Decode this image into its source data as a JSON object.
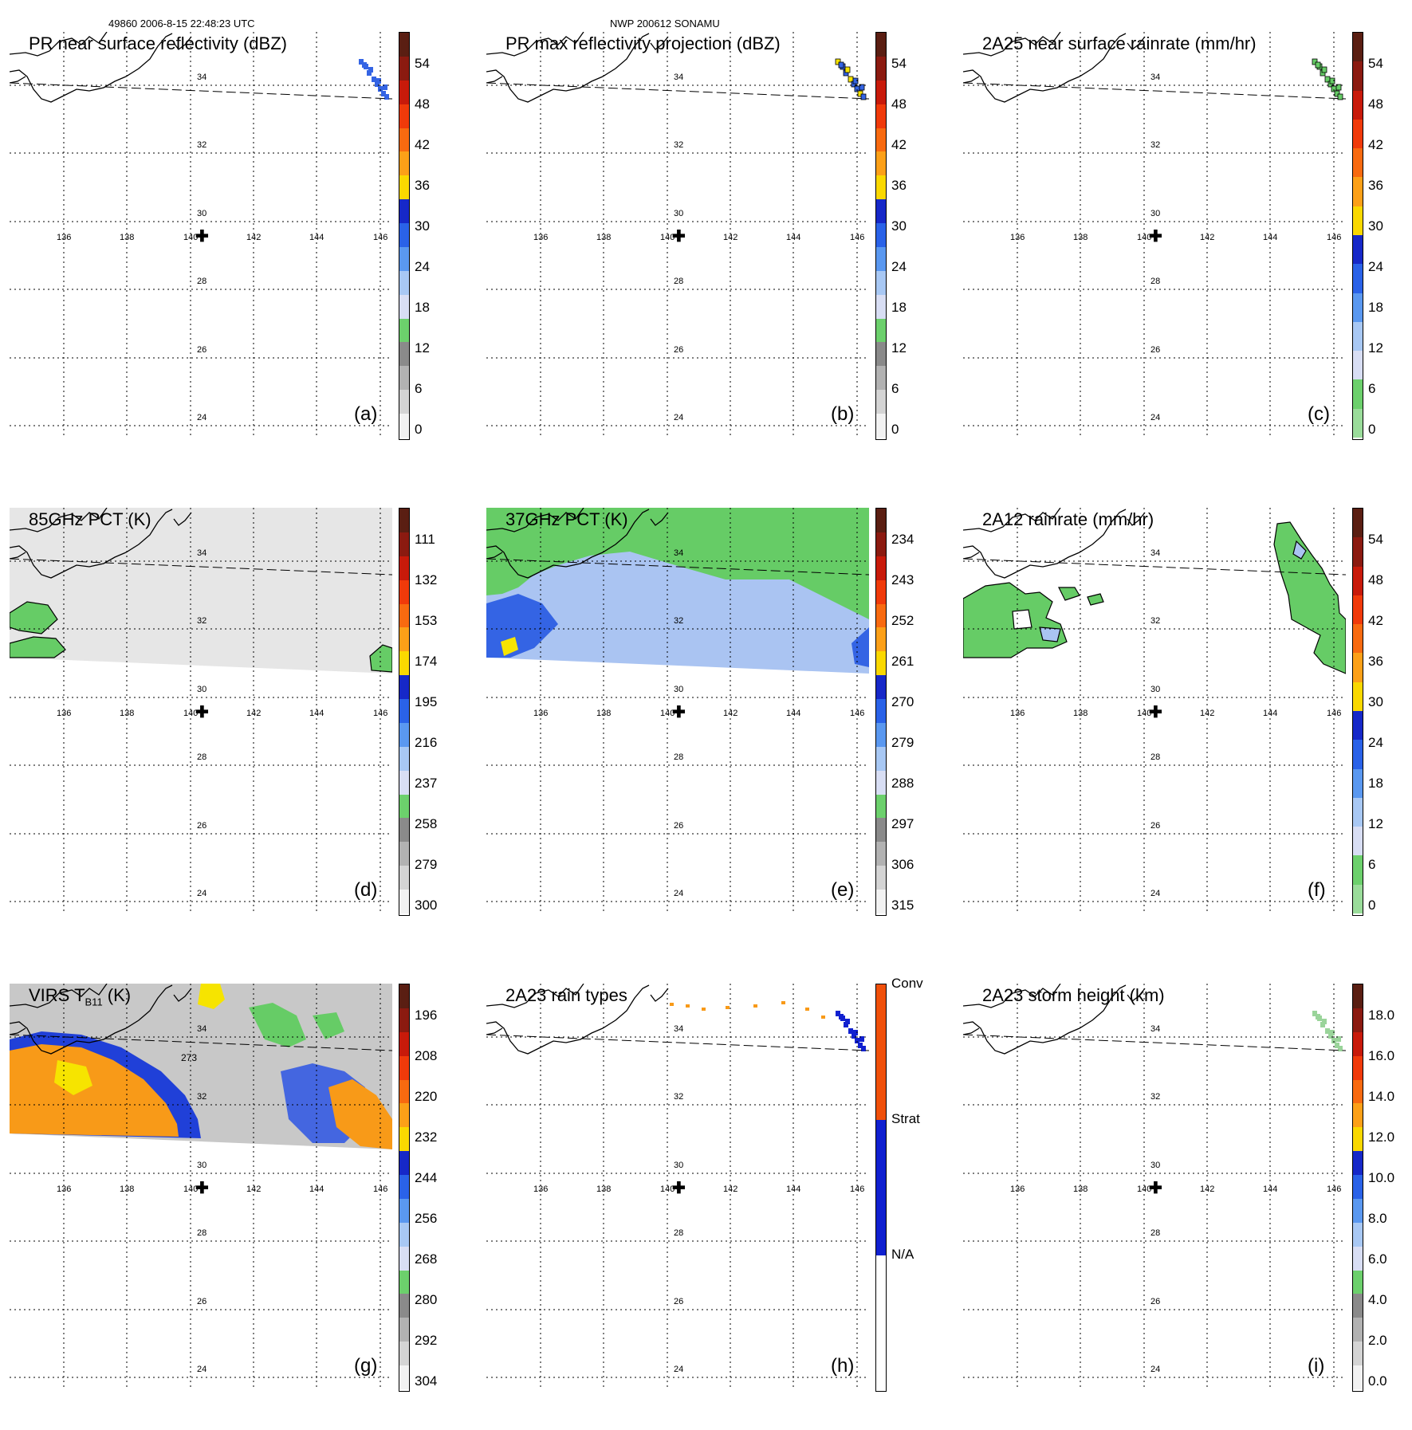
{
  "header": {
    "left": "49860 2006-8-15 22:48:23 UTC",
    "center": "NWP 200612 SONAMU"
  },
  "lat_labels": [
    "34",
    "32",
    "30",
    "28",
    "26",
    "24"
  ],
  "lon_labels": [
    "136",
    "138",
    "140",
    "142",
    "144",
    "146"
  ],
  "center_marker": "✚",
  "panels": [
    {
      "id": "a",
      "title": "PR near surface reflectivity (dBZ)",
      "label": "(a)",
      "ticks": [
        "54",
        "48",
        "42",
        "36",
        "30",
        "24",
        "18",
        "12",
        "6",
        "0"
      ]
    },
    {
      "id": "b",
      "title": "PR max reflectivity projection (dBZ)",
      "label": "(b)",
      "ticks": [
        "54",
        "48",
        "42",
        "36",
        "30",
        "24",
        "18",
        "12",
        "6",
        "0"
      ]
    },
    {
      "id": "c",
      "title": "2A25 near surface rainrate (mm/hr)",
      "label": "(c)",
      "ticks": [
        "54",
        "48",
        "42",
        "36",
        "30",
        "24",
        "18",
        "12",
        "6",
        "0"
      ]
    },
    {
      "id": "d",
      "title": "85GHz PCT (K)",
      "label": "(d)",
      "ticks": [
        "111",
        "132",
        "153",
        "174",
        "195",
        "216",
        "237",
        "258",
        "279",
        "300"
      ]
    },
    {
      "id": "e",
      "title": "37GHz PCT (K)",
      "label": "(e)",
      "ticks": [
        "234",
        "243",
        "252",
        "261",
        "270",
        "279",
        "288",
        "297",
        "306",
        "315"
      ]
    },
    {
      "id": "f",
      "title": "2A12 rainrate (mm/hr)",
      "label": "(f)",
      "ticks": [
        "54",
        "48",
        "42",
        "36",
        "30",
        "24",
        "18",
        "12",
        "6",
        "0"
      ]
    },
    {
      "id": "g",
      "title": "VIRS T",
      "title_sub": "B11",
      "title_end": " (K)",
      "label": "(g)",
      "ticks": [
        "196",
        "208",
        "220",
        "232",
        "244",
        "256",
        "268",
        "280",
        "292",
        "304"
      ],
      "contour_label": "273"
    },
    {
      "id": "h",
      "title": "2A23 rain types",
      "label": "(h)",
      "ticks": [
        "Conv",
        "Strat",
        "N/A"
      ]
    },
    {
      "id": "i",
      "title": "2A23 storm height (km)",
      "label": "(i)",
      "ticks": [
        "18.0",
        "16.0",
        "14.0",
        "12.0",
        "10.0",
        "8.0",
        "6.0",
        "4.0",
        "2.0",
        "0.0"
      ]
    }
  ],
  "colors": {
    "dbz": [
      "#5a1e12",
      "#8b1a10",
      "#c81a0a",
      "#f03a0a",
      "#f86a10",
      "#fca018",
      "#fad800",
      "#1628c8",
      "#2a62e8",
      "#5a98f0",
      "#a8c8f4",
      "#d8def4",
      "#6cd06c",
      "#8a8a8a",
      "#b2b2b2",
      "#d4d4d4",
      "#f2f2f2"
    ],
    "rain": [
      "#5a1e12",
      "#8b1a10",
      "#c81a0a",
      "#f03a0a",
      "#f86a10",
      "#fca018",
      "#fad800",
      "#1628c8",
      "#2a62e8",
      "#5a98f0",
      "#a8c8f4",
      "#d8def4",
      "#6cd06c",
      "#9adc9a"
    ],
    "pct": [
      "#5a1e12",
      "#8b1a10",
      "#c81a0a",
      "#f03a0a",
      "#f86a10",
      "#fca018",
      "#fad800",
      "#1628c8",
      "#2a62e8",
      "#5a98f0",
      "#a8c8f4",
      "#d8def4",
      "#6cd06c",
      "#8a8a8a",
      "#b2b2b2",
      "#d4d4d4",
      "#f2f2f2"
    ],
    "types": [
      "#f0500a",
      "#1020d0",
      "#ffffff"
    ],
    "bt85": "#e6e6e6",
    "green": "#66cc66",
    "lightblue": "#aac4f2",
    "orange": "#f89a18",
    "yellow": "#f6e400"
  }
}
